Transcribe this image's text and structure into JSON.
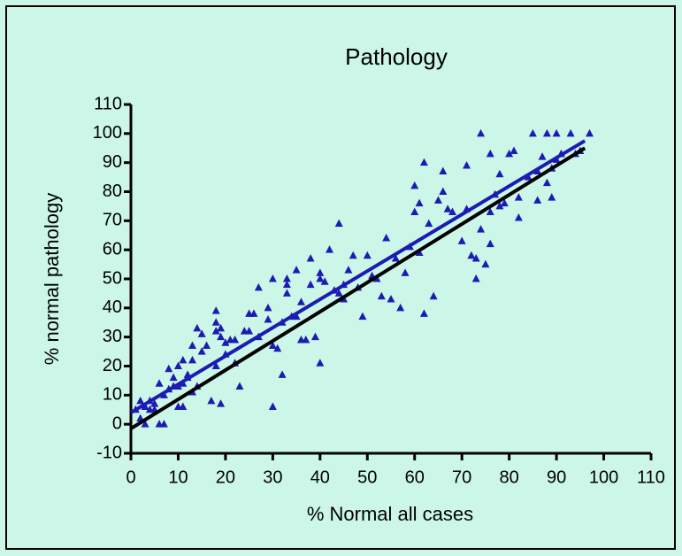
{
  "chart_data": {
    "type": "scatter",
    "title": "Pathology",
    "x_label": "% Normal all cases",
    "y_label": "%  normal pathology",
    "xlim": [
      0,
      110
    ],
    "ylim": [
      -10,
      110
    ],
    "xticks": [
      0,
      10,
      20,
      30,
      40,
      50,
      60,
      70,
      80,
      90,
      100,
      110
    ],
    "yticks": [
      -10,
      0,
      10,
      20,
      30,
      40,
      50,
      60,
      70,
      80,
      90,
      100,
      110
    ],
    "series": [
      {
        "color": "#1c1cb4",
        "marker": "triangle",
        "x": [
          1,
          2,
          2,
          3,
          3,
          4,
          4,
          5,
          5,
          6,
          6,
          7,
          7,
          8,
          8,
          9,
          9,
          10,
          10,
          10,
          11,
          11,
          11,
          12,
          12,
          13,
          13,
          13,
          14,
          14,
          15,
          15,
          16,
          17,
          18,
          18,
          18,
          18,
          19,
          19,
          19,
          20,
          20,
          21,
          22,
          22,
          23,
          24,
          25,
          25,
          26,
          27,
          27,
          29,
          29,
          30,
          30,
          30,
          31,
          32,
          32,
          33,
          33,
          33,
          34,
          35,
          35,
          36,
          36,
          37,
          38,
          38,
          39,
          40,
          40,
          40,
          41,
          42,
          43,
          44,
          44,
          45,
          45,
          46,
          47,
          48,
          49,
          50,
          51,
          52,
          53,
          54,
          55,
          56,
          57,
          58,
          59,
          60,
          60,
          61,
          61,
          62,
          62,
          63,
          64,
          65,
          66,
          66,
          67,
          68,
          70,
          71,
          71,
          72,
          73,
          73,
          74,
          74,
          75,
          76,
          76,
          76,
          77,
          78,
          78,
          79,
          80,
          81,
          82,
          82,
          84,
          85,
          86,
          86,
          87,
          88,
          88,
          89,
          89,
          90,
          90,
          91,
          93,
          94,
          95,
          97
        ],
        "values": [
          5,
          8,
          2,
          6,
          0,
          5,
          8,
          5,
          7,
          0,
          14,
          0,
          10,
          19,
          12,
          13,
          16,
          20,
          6,
          13,
          6,
          22,
          14,
          17,
          16,
          27,
          11,
          22,
          33,
          13,
          31,
          25,
          27,
          8,
          39,
          35,
          32,
          20,
          7,
          33,
          30,
          28,
          24,
          29,
          21,
          29,
          13,
          32,
          32,
          38,
          38,
          47,
          30,
          36,
          40,
          6,
          50,
          27,
          26,
          17,
          35,
          45,
          50,
          48,
          37,
          37,
          53,
          29,
          42,
          29,
          57,
          48,
          30,
          52,
          50,
          21,
          49,
          60,
          46,
          69,
          45,
          43,
          48,
          53,
          58,
          47,
          37,
          58,
          51,
          50,
          44,
          64,
          43,
          57,
          40,
          52,
          61,
          73,
          82,
          59,
          76,
          90,
          38,
          69,
          44,
          77,
          87,
          80,
          74,
          73,
          63,
          89,
          74,
          58,
          57,
          50,
          100,
          67,
          55,
          73,
          93,
          62,
          79,
          86,
          75,
          76,
          93,
          94,
          78,
          71,
          85,
          100,
          77,
          87,
          92,
          100,
          83,
          88,
          78,
          91,
          100,
          93,
          100,
          93,
          94,
          100
        ]
      },
      {
        "color": "#1c1cb4",
        "line": true,
        "x": [
          0,
          96
        ],
        "values": [
          4,
          97.5
        ]
      },
      {
        "color": "#000000",
        "line": true,
        "x": [
          0,
          96
        ],
        "values": [
          -1.5,
          95
        ]
      }
    ]
  }
}
